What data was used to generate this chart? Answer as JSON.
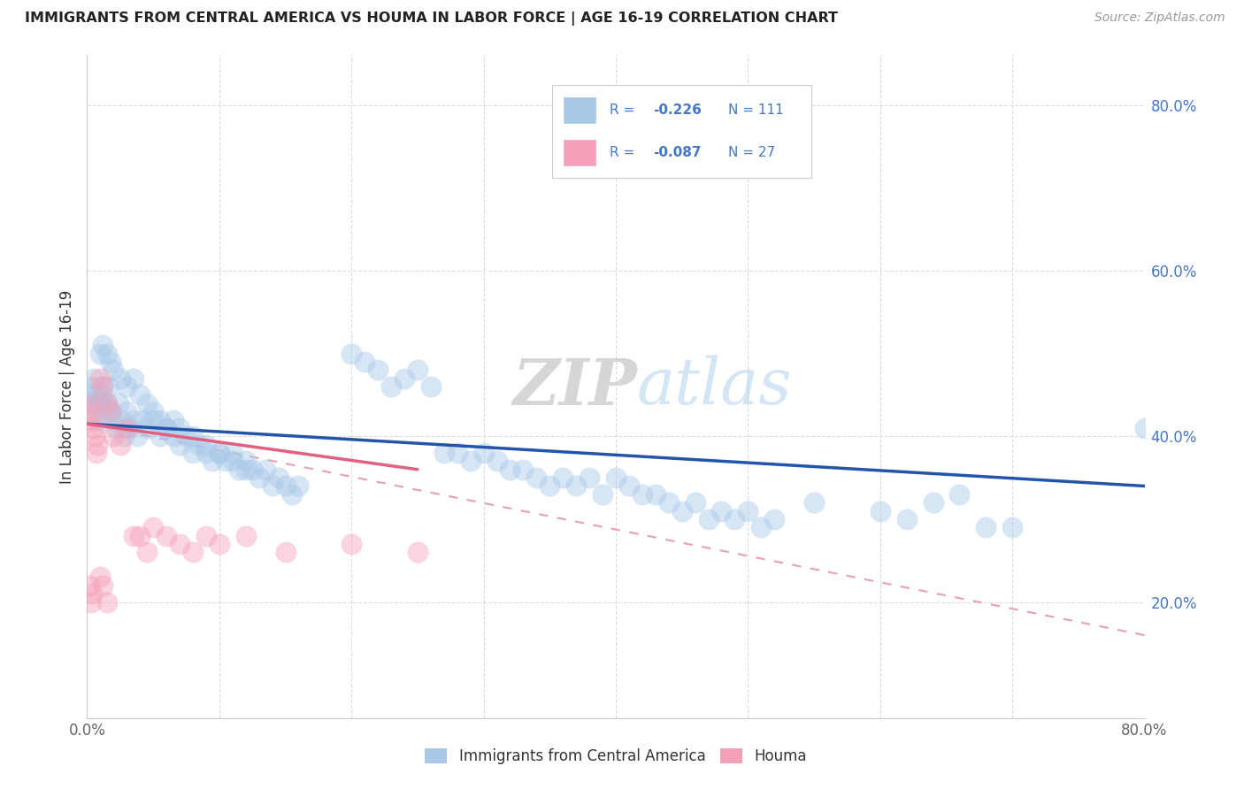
{
  "title": "IMMIGRANTS FROM CENTRAL AMERICA VS HOUMA IN LABOR FORCE | AGE 16-19 CORRELATION CHART",
  "source": "Source: ZipAtlas.com",
  "ylabel": "In Labor Force | Age 16-19",
  "xlim": [
    0.0,
    0.8
  ],
  "ylim": [
    0.06,
    0.86
  ],
  "blue_color": "#a8c8e8",
  "pink_color": "#f4a0b8",
  "blue_line_color": "#2255aa",
  "pink_line_color": "#e06080",
  "dashed_line_color": "#e8a0b0",
  "grid_color": "#dddddd",
  "legend_text_color": "#4477cc",
  "legend_label_color": "#333333",
  "watermark_zip": "ZIP",
  "watermark_atlas": "atlas",
  "blue_trend": [
    0.0,
    0.8,
    0.415,
    0.34
  ],
  "pink_solid_trend": [
    0.0,
    0.25,
    0.415,
    0.36
  ],
  "pink_dashed_trend": [
    0.0,
    0.8,
    0.415,
    0.16
  ],
  "blue_x": [
    0.002,
    0.003,
    0.004,
    0.005,
    0.006,
    0.007,
    0.008,
    0.009,
    0.01,
    0.011,
    0.012,
    0.013,
    0.014,
    0.015,
    0.016,
    0.018,
    0.02,
    0.022,
    0.024,
    0.026,
    0.028,
    0.03,
    0.032,
    0.035,
    0.038,
    0.042,
    0.046,
    0.05,
    0.055,
    0.06,
    0.065,
    0.07,
    0.075,
    0.08,
    0.085,
    0.09,
    0.095,
    0.1,
    0.105,
    0.11,
    0.115,
    0.12,
    0.125,
    0.13,
    0.135,
    0.14,
    0.145,
    0.15,
    0.155,
    0.16,
    0.01,
    0.012,
    0.015,
    0.018,
    0.02,
    0.025,
    0.03,
    0.035,
    0.04,
    0.045,
    0.05,
    0.055,
    0.06,
    0.065,
    0.07,
    0.08,
    0.09,
    0.1,
    0.11,
    0.12,
    0.2,
    0.21,
    0.22,
    0.23,
    0.24,
    0.25,
    0.26,
    0.27,
    0.28,
    0.29,
    0.3,
    0.31,
    0.32,
    0.33,
    0.34,
    0.35,
    0.36,
    0.37,
    0.38,
    0.39,
    0.4,
    0.41,
    0.42,
    0.43,
    0.44,
    0.45,
    0.46,
    0.47,
    0.48,
    0.49,
    0.5,
    0.51,
    0.52,
    0.55,
    0.6,
    0.62,
    0.64,
    0.66,
    0.68,
    0.7,
    0.8
  ],
  "blue_y": [
    0.44,
    0.45,
    0.46,
    0.47,
    0.43,
    0.45,
    0.44,
    0.42,
    0.44,
    0.46,
    0.45,
    0.44,
    0.43,
    0.44,
    0.46,
    0.43,
    0.42,
    0.41,
    0.44,
    0.42,
    0.4,
    0.43,
    0.41,
    0.42,
    0.4,
    0.42,
    0.41,
    0.42,
    0.4,
    0.41,
    0.4,
    0.39,
    0.4,
    0.38,
    0.39,
    0.38,
    0.37,
    0.38,
    0.37,
    0.38,
    0.36,
    0.37,
    0.36,
    0.35,
    0.36,
    0.34,
    0.35,
    0.34,
    0.33,
    0.34,
    0.5,
    0.51,
    0.5,
    0.49,
    0.48,
    0.47,
    0.46,
    0.47,
    0.45,
    0.44,
    0.43,
    0.42,
    0.41,
    0.42,
    0.41,
    0.4,
    0.39,
    0.38,
    0.37,
    0.36,
    0.5,
    0.49,
    0.48,
    0.46,
    0.47,
    0.48,
    0.46,
    0.38,
    0.38,
    0.37,
    0.38,
    0.37,
    0.36,
    0.36,
    0.35,
    0.34,
    0.35,
    0.34,
    0.35,
    0.33,
    0.35,
    0.34,
    0.33,
    0.33,
    0.32,
    0.31,
    0.32,
    0.3,
    0.31,
    0.3,
    0.31,
    0.29,
    0.3,
    0.32,
    0.31,
    0.3,
    0.32,
    0.33,
    0.29,
    0.29,
    0.41
  ],
  "pink_x": [
    0.002,
    0.003,
    0.004,
    0.005,
    0.006,
    0.007,
    0.008,
    0.01,
    0.012,
    0.015,
    0.018,
    0.02,
    0.025,
    0.03,
    0.035,
    0.04,
    0.045,
    0.05,
    0.06,
    0.07,
    0.08,
    0.09,
    0.1,
    0.12,
    0.15,
    0.2,
    0.25
  ],
  "pink_y": [
    0.43,
    0.44,
    0.42,
    0.41,
    0.4,
    0.38,
    0.39,
    0.47,
    0.46,
    0.44,
    0.43,
    0.4,
    0.39,
    0.41,
    0.28,
    0.28,
    0.26,
    0.29,
    0.28,
    0.27,
    0.26,
    0.28,
    0.27,
    0.28,
    0.26,
    0.27,
    0.26
  ],
  "extra_pink_x": [
    0.002,
    0.003,
    0.004,
    0.01,
    0.012,
    0.015
  ],
  "extra_pink_y": [
    0.22,
    0.2,
    0.21,
    0.23,
    0.22,
    0.2
  ]
}
